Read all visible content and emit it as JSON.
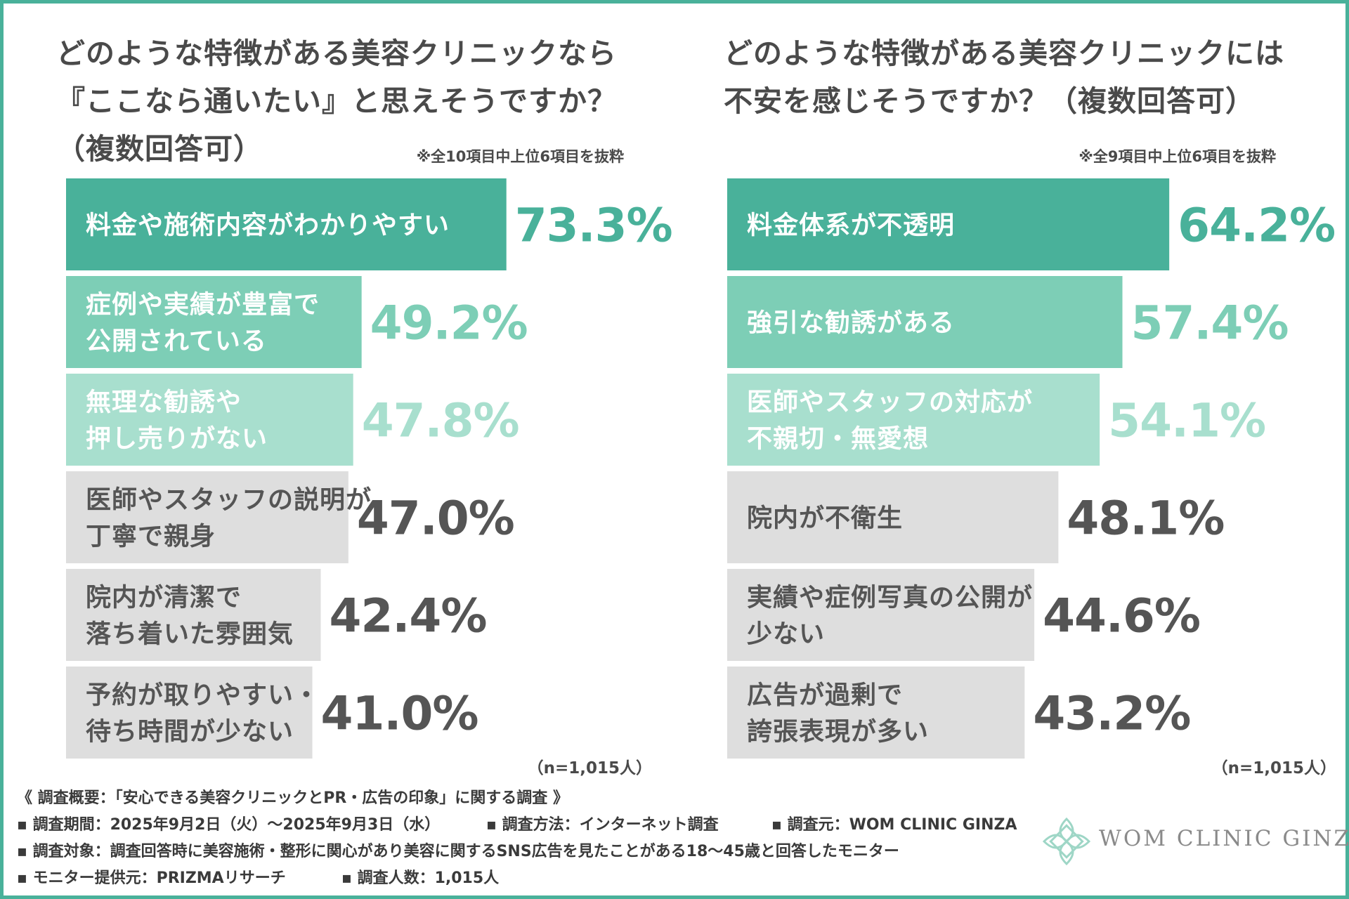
{
  "colors": {
    "border": "#49b19a",
    "bar_1": "#49b19a",
    "bar_2": "#7dceb6",
    "bar_3": "#a8dfce",
    "bar_gray": "#dedede",
    "text_dark": "#555555",
    "label_light": "#ffffff",
    "label_dark": "#555555"
  },
  "left": {
    "title_lines": [
      "どのような特徴がある美容クリニックなら",
      "『ここなら通いたい』と思えそうですか？",
      "（複数回答可）"
    ],
    "note": "※全10項目中上位6項目を抜粋",
    "n_note": "（n=1,015人）"
  },
  "right": {
    "title_lines": [
      "どのような特徴がある美容クリニックには",
      "不安を感じそうですか？（複数回答可）"
    ],
    "note": "※全9項目中上位6項目を抜粋",
    "n_note": "（n=1,015人）"
  },
  "chart_data": [
    {
      "type": "bar",
      "orientation": "horizontal",
      "title": "どのような特徴がある美容クリニックなら『ここなら通いたい』と思えそうですか？（複数回答可）",
      "categories": [
        "料金や施術内容がわかりやすい",
        "症例や実績が豊富で公開されている",
        "無理な勧誘や押し売りがない",
        "医師やスタッフの説明が丁寧で親身",
        "院内が清潔で落ち着いた雰囲気",
        "予約が取りやすい・待ち時間が少ない"
      ],
      "label_lines": [
        [
          "料金や施術内容がわかりやすい"
        ],
        [
          "症例や実績が豊富で",
          "公開されている"
        ],
        [
          "無理な勧誘や",
          "押し売りがない"
        ],
        [
          "医師やスタッフの説明が",
          "丁寧で親身"
        ],
        [
          "院内が清潔で",
          "落ち着いた雰囲気"
        ],
        [
          "予約が取りやすい・",
          "待ち時間が少ない"
        ]
      ],
      "values": [
        73.3,
        49.2,
        47.8,
        47.0,
        42.4,
        41.0
      ],
      "value_labels": [
        "73.3%",
        "49.2%",
        "47.8%",
        "47.0%",
        "42.4%",
        "41.0%"
      ],
      "unit": "%",
      "n": "n=1,015人"
    },
    {
      "type": "bar",
      "orientation": "horizontal",
      "title": "どのような特徴がある美容クリニックには不安を感じそうですか？（複数回答可）",
      "categories": [
        "料金体系が不透明",
        "強引な勧誘がある",
        "医師やスタッフの対応が不親切・無愛想",
        "院内が不衛生",
        "実績や症例写真の公開が少ない",
        "広告が過剰で誇張表現が多い"
      ],
      "label_lines": [
        [
          "料金体系が不透明"
        ],
        [
          "強引な勧誘がある"
        ],
        [
          "医師やスタッフの対応が",
          "不親切・無愛想"
        ],
        [
          "院内が不衛生"
        ],
        [
          "実績や症例写真の公開が",
          "少ない"
        ],
        [
          "広告が過剰で",
          "誇張表現が多い"
        ]
      ],
      "values": [
        64.2,
        57.4,
        54.1,
        48.1,
        44.6,
        43.2
      ],
      "value_labels": [
        "64.2%",
        "57.4%",
        "54.1%",
        "48.1%",
        "44.6%",
        "43.2%"
      ],
      "unit": "%",
      "n": "n=1,015人"
    }
  ],
  "footer": {
    "overview": "《 調査概要：「安心できる美容クリニックとPR・広告の印象」に関する調査 》",
    "period": "▪ 調査期間：2025年9月2日（火）〜2025年9月3日（水）",
    "method": "▪ 調査方法：インターネット調査",
    "source": "▪ 調査元：WOM CLINIC GINZA",
    "target": "▪ 調査対象：調査回答時に美容施術・整形に関心があり美容に関するSNS広告を見たことがある18〜45歳と回答したモニター",
    "provider": "▪ モニター提供元：PRIZMAリサーチ",
    "count": "▪ 調査人数：1,015人"
  },
  "logo": {
    "text": "WOM CLINIC GINZA",
    "icon": "flower-ornament-icon"
  }
}
